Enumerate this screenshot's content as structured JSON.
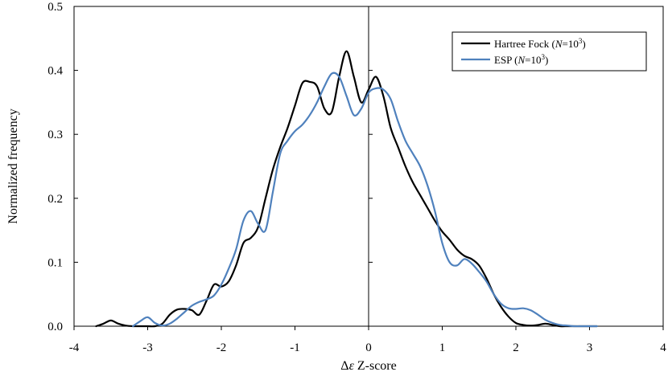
{
  "chart_data": {
    "type": "line",
    "title": "",
    "xlabel": "Δε Z-score",
    "ylabel": "Normalized frequency",
    "xlim": [
      -4,
      4
    ],
    "ylim": [
      0,
      0.5
    ],
    "x_ticks": [
      "-4",
      "-3",
      "-2",
      "-1",
      "0",
      "1",
      "2",
      "3",
      "4"
    ],
    "y_ticks": [
      "0.0",
      "0.1",
      "0.2",
      "0.3",
      "0.4",
      "0.5"
    ],
    "grid": false,
    "legend_position": "top-right",
    "legend": [
      {
        "italic": "N",
        "text_before": "Hartree Fock (",
        "text_mid": "=10",
        "sup": "3",
        "text_after": ")",
        "color": "#000000"
      },
      {
        "italic": "N",
        "text_before": "ESP (",
        "text_mid": "=10",
        "sup": "3",
        "text_after": ")",
        "color": "#4f81bd"
      }
    ],
    "series": [
      {
        "name": "Hartree Fock (N=10^3)",
        "color": "#000000",
        "x": [
          -3.7,
          -3.6,
          -3.5,
          -3.4,
          -3.3,
          -3.2,
          -3.1,
          -3.0,
          -2.9,
          -2.8,
          -2.7,
          -2.6,
          -2.5,
          -2.4,
          -2.3,
          -2.2,
          -2.1,
          -2.0,
          -1.9,
          -1.8,
          -1.7,
          -1.6,
          -1.5,
          -1.4,
          -1.3,
          -1.2,
          -1.1,
          -1.0,
          -0.9,
          -0.8,
          -0.7,
          -0.6,
          -0.5,
          -0.4,
          -0.3,
          -0.2,
          -0.1,
          0.0,
          0.1,
          0.2,
          0.3,
          0.4,
          0.5,
          0.6,
          0.7,
          0.8,
          0.9,
          1.0,
          1.1,
          1.2,
          1.3,
          1.4,
          1.5,
          1.6,
          1.7,
          1.8,
          1.9,
          2.0,
          2.1,
          2.2,
          2.3,
          2.4,
          2.5,
          2.6,
          2.7,
          2.8,
          2.9,
          3.0,
          3.1
        ],
        "y": [
          0.0,
          0.004,
          0.009,
          0.004,
          0.001,
          0.0,
          0.0,
          0.0,
          0.0,
          0.004,
          0.018,
          0.026,
          0.027,
          0.025,
          0.018,
          0.04,
          0.065,
          0.062,
          0.07,
          0.095,
          0.13,
          0.138,
          0.155,
          0.2,
          0.245,
          0.28,
          0.31,
          0.345,
          0.38,
          0.382,
          0.375,
          0.34,
          0.335,
          0.39,
          0.43,
          0.39,
          0.35,
          0.37,
          0.39,
          0.36,
          0.31,
          0.28,
          0.25,
          0.225,
          0.205,
          0.185,
          0.165,
          0.148,
          0.135,
          0.12,
          0.11,
          0.105,
          0.095,
          0.075,
          0.05,
          0.03,
          0.015,
          0.005,
          0.002,
          0.001,
          0.002,
          0.004,
          0.002,
          0.0,
          0.0,
          0.0,
          0.0,
          0.0,
          0.0
        ]
      },
      {
        "name": "ESP (N=10^3)",
        "color": "#4f81bd",
        "x": [
          -3.2,
          -3.1,
          -3.0,
          -2.9,
          -2.8,
          -2.7,
          -2.6,
          -2.5,
          -2.4,
          -2.3,
          -2.2,
          -2.1,
          -2.0,
          -1.9,
          -1.8,
          -1.7,
          -1.6,
          -1.5,
          -1.4,
          -1.3,
          -1.2,
          -1.1,
          -1.0,
          -0.9,
          -0.8,
          -0.7,
          -0.6,
          -0.5,
          -0.4,
          -0.3,
          -0.2,
          -0.1,
          0.0,
          0.1,
          0.2,
          0.3,
          0.4,
          0.5,
          0.6,
          0.7,
          0.8,
          0.9,
          1.0,
          1.1,
          1.2,
          1.3,
          1.4,
          1.5,
          1.6,
          1.7,
          1.8,
          1.9,
          2.0,
          2.1,
          2.2,
          2.3,
          2.4,
          2.5,
          2.6,
          2.7,
          2.8,
          2.9,
          3.0,
          3.1
        ],
        "y": [
          0.0,
          0.008,
          0.014,
          0.005,
          0.001,
          0.004,
          0.012,
          0.022,
          0.032,
          0.038,
          0.042,
          0.048,
          0.065,
          0.09,
          0.12,
          0.165,
          0.18,
          0.16,
          0.15,
          0.21,
          0.27,
          0.29,
          0.305,
          0.315,
          0.33,
          0.35,
          0.375,
          0.395,
          0.39,
          0.36,
          0.33,
          0.34,
          0.365,
          0.372,
          0.37,
          0.355,
          0.32,
          0.29,
          0.27,
          0.25,
          0.22,
          0.18,
          0.13,
          0.1,
          0.095,
          0.105,
          0.098,
          0.085,
          0.07,
          0.05,
          0.035,
          0.028,
          0.027,
          0.028,
          0.025,
          0.018,
          0.01,
          0.005,
          0.002,
          0.001,
          0.0,
          0.0,
          0.0,
          0.0
        ]
      }
    ]
  }
}
